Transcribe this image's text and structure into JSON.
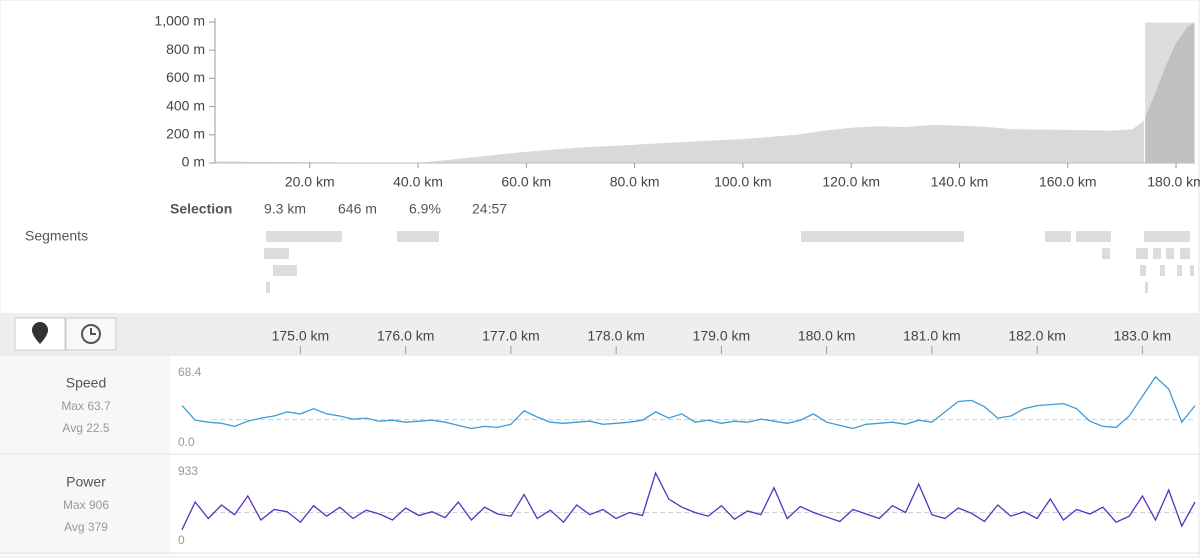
{
  "selection": {
    "label": "Selection",
    "stats": [
      "9.3 km",
      "646 m",
      "6.9%",
      "24:57"
    ]
  },
  "segments_label": "Segments",
  "chart_data": [
    {
      "type": "area",
      "color": "#d9d9d9",
      "x": [
        2.5,
        10,
        20,
        30,
        40,
        45,
        50,
        60,
        70,
        80,
        90,
        100,
        110,
        115,
        120,
        125,
        130,
        135,
        140,
        145,
        150,
        160,
        168,
        172,
        174,
        176,
        178,
        180,
        182,
        183.5
      ],
      "values": [
        12,
        8,
        5,
        3,
        2,
        20,
        40,
        80,
        110,
        130,
        150,
        170,
        200,
        230,
        250,
        260,
        255,
        270,
        265,
        255,
        240,
        235,
        230,
        240,
        300,
        480,
        680,
        850,
        960,
        1000
      ],
      "xlim": [
        2.5,
        183.5
      ],
      "ylim": [
        0,
        1000
      ],
      "xticks": [
        {
          "value": 20,
          "label": "20.0 km"
        },
        {
          "value": 40,
          "label": "40.0 km"
        },
        {
          "value": 60,
          "label": "60.0 km"
        },
        {
          "value": 80,
          "label": "80.0 km"
        },
        {
          "value": 100,
          "label": "100.0 km"
        },
        {
          "value": 120,
          "label": "120.0 km"
        },
        {
          "value": 140,
          "label": "140.0 km"
        },
        {
          "value": 160,
          "label": "160.0 km"
        },
        {
          "value": 180,
          "label": "180.0 km"
        }
      ],
      "yticks": [
        {
          "value": 0,
          "label": "0 m"
        },
        {
          "value": 200,
          "label": "200 m"
        },
        {
          "value": 400,
          "label": "400 m"
        },
        {
          "value": 600,
          "label": "600 m"
        },
        {
          "value": 800,
          "label": "800 m"
        },
        {
          "value": 1000,
          "label": "1,000 m"
        }
      ],
      "selection_range": [
        174.2,
        183.5
      ]
    },
    {
      "type": "line",
      "title": "Speed",
      "color": "#3d9bd6",
      "avg_color": "#aed6ee",
      "stats": [
        {
          "label": "Max",
          "value": 63.7
        },
        {
          "label": "Avg",
          "value": 22.5
        }
      ],
      "x": [
        173.875,
        174.0,
        174.125,
        174.25,
        174.375,
        174.5,
        174.625,
        174.75,
        174.875,
        175.0,
        175.125,
        175.25,
        175.375,
        175.5,
        175.625,
        175.75,
        175.875,
        176.0,
        176.125,
        176.25,
        176.375,
        176.5,
        176.625,
        176.75,
        176.875,
        177.0,
        177.125,
        177.25,
        177.375,
        177.5,
        177.625,
        177.75,
        177.875,
        178.0,
        178.125,
        178.25,
        178.375,
        178.5,
        178.625,
        178.75,
        178.875,
        179.0,
        179.125,
        179.25,
        179.375,
        179.5,
        179.625,
        179.75,
        179.875,
        180.0,
        180.125,
        180.25,
        180.375,
        180.5,
        180.625,
        180.75,
        180.875,
        181.0,
        181.125,
        181.25,
        181.375,
        181.5,
        181.625,
        181.75,
        181.875,
        182.0,
        182.125,
        182.25,
        182.375,
        182.5,
        182.625,
        182.75,
        182.875,
        183.0,
        183.125,
        183.25,
        183.375,
        183.5
      ],
      "values": [
        36,
        22,
        20,
        19,
        16,
        21,
        24,
        26,
        30,
        28,
        33,
        28,
        26,
        23,
        24,
        21,
        22,
        20,
        21,
        22,
        20,
        17,
        14,
        16,
        15,
        18,
        31,
        25,
        20,
        19,
        20,
        21,
        18,
        19,
        20,
        22,
        30,
        24,
        28,
        20,
        22,
        19,
        21,
        20,
        23,
        21,
        19,
        22,
        28,
        20,
        17,
        14,
        18,
        19,
        20,
        18,
        22,
        20,
        30,
        40,
        41,
        35,
        24,
        26,
        33,
        36,
        37,
        38,
        33,
        21,
        16,
        15,
        26,
        45,
        63.7,
        52,
        20,
        36
      ],
      "xlim": [
        173.78,
        183.5
      ],
      "ylim": [
        0,
        68.4
      ],
      "xticks": [
        {
          "value": 175,
          "label": "175.0 km"
        },
        {
          "value": 176,
          "label": "176.0 km"
        },
        {
          "value": 177,
          "label": "177.0 km"
        },
        {
          "value": 178,
          "label": "178.0 km"
        },
        {
          "value": 179,
          "label": "179.0 km"
        },
        {
          "value": 180,
          "label": "180.0 km"
        },
        {
          "value": 181,
          "label": "181.0 km"
        },
        {
          "value": 182,
          "label": "182.0 km"
        },
        {
          "value": 183,
          "label": "183.0 km"
        }
      ],
      "yticks": [
        68.4,
        {
          "value": 0,
          "label": "0.0"
        }
      ]
    },
    {
      "type": "line",
      "title": "Power",
      "color": "#5a2fc4",
      "avg_color": "#cccccc",
      "stats": [
        {
          "label": "Max",
          "value": 906
        },
        {
          "label": "Avg",
          "value": 379
        }
      ],
      "x": [
        173.875,
        174.0,
        174.125,
        174.25,
        174.375,
        174.5,
        174.625,
        174.75,
        174.875,
        175.0,
        175.125,
        175.25,
        175.375,
        175.5,
        175.625,
        175.75,
        175.875,
        176.0,
        176.125,
        176.25,
        176.375,
        176.5,
        176.625,
        176.75,
        176.875,
        177.0,
        177.125,
        177.25,
        177.375,
        177.5,
        177.625,
        177.75,
        177.875,
        178.0,
        178.125,
        178.25,
        178.375,
        178.5,
        178.625,
        178.75,
        178.875,
        179.0,
        179.125,
        179.25,
        179.375,
        179.5,
        179.625,
        179.75,
        179.875,
        180.0,
        180.125,
        180.25,
        180.375,
        180.5,
        180.625,
        180.75,
        180.875,
        181.0,
        181.125,
        181.25,
        181.375,
        181.5,
        181.625,
        181.75,
        181.875,
        182.0,
        182.125,
        182.25,
        182.375,
        182.5,
        182.625,
        182.75,
        182.875,
        183.0,
        183.125,
        183.25,
        183.375,
        183.5
      ],
      "values": [
        150,
        520,
        300,
        480,
        350,
        600,
        280,
        420,
        390,
        250,
        470,
        330,
        450,
        300,
        410,
        360,
        280,
        440,
        340,
        390,
        310,
        520,
        280,
        450,
        360,
        330,
        620,
        300,
        410,
        250,
        480,
        350,
        420,
        300,
        380,
        340,
        906,
        560,
        450,
        380,
        330,
        470,
        290,
        400,
        350,
        710,
        300,
        460,
        380,
        320,
        260,
        420,
        360,
        300,
        470,
        380,
        760,
        350,
        300,
        440,
        370,
        260,
        480,
        330,
        390,
        300,
        560,
        280,
        420,
        360,
        450,
        250,
        330,
        600,
        280,
        680,
        200,
        520
      ],
      "xlim": [
        173.78,
        183.5
      ],
      "ylim": [
        0,
        933
      ],
      "yticks": [
        933,
        0
      ]
    }
  ]
}
